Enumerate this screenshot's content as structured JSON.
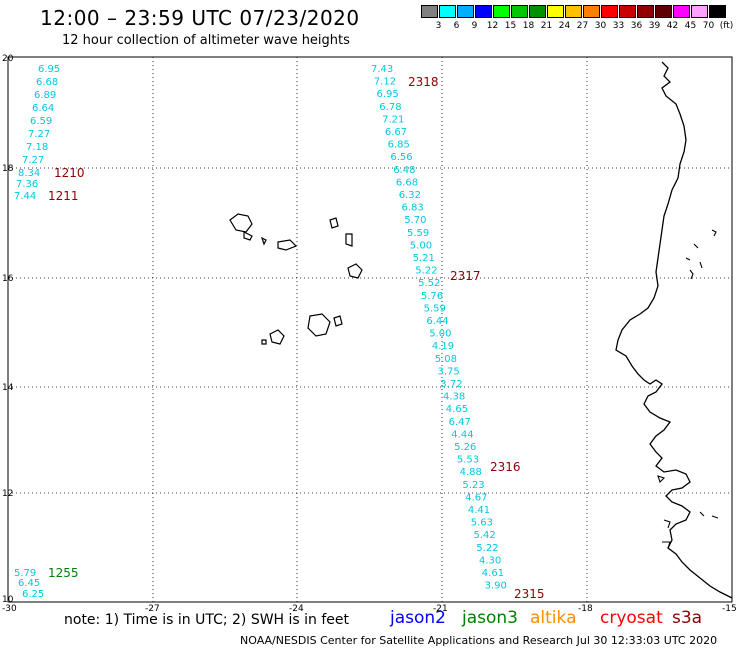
{
  "header": {
    "title": "12:00 – 23:59 UTC 07/23/2020",
    "subtitle": "12 hour collection of altimeter wave heights"
  },
  "legend": {
    "labels": [
      "3",
      "6",
      "9",
      "12",
      "15",
      "18",
      "21",
      "24",
      "27",
      "30",
      "33",
      "36",
      "39",
      "42",
      "45",
      "70",
      "(ft)"
    ],
    "colors": [
      "#808080",
      "#00ffff",
      "#00b0ff",
      "#0000ff",
      "#00ff00",
      "#00c800",
      "#009000",
      "#ffff00",
      "#ffc000",
      "#ff8000",
      "#ff0000",
      "#c80000",
      "#900000",
      "#600000",
      "#ff00ff",
      "#ffa0ff",
      "#000000"
    ]
  },
  "axes": {
    "x_ticks": [
      "-30",
      "-27",
      "-24",
      "-21",
      "-18",
      "-15"
    ],
    "y_ticks": [
      "20",
      "18",
      "16",
      "14",
      "12",
      "10"
    ]
  },
  "tracks": {
    "group_a": {
      "values": [
        "6.95",
        "6.68",
        "6.89",
        "6.64",
        "6.59",
        "7.27",
        "7.18",
        "7.27",
        "8.34",
        "7.36",
        "7.44"
      ],
      "times": [
        "1210",
        "1211"
      ]
    },
    "group_b": {
      "values": [
        "7.43",
        "7.12",
        "6.95",
        "6.78",
        "7.21",
        "6.67",
        "6.85",
        "6.56",
        "6.48",
        "6.68",
        "6.32",
        "6.83",
        "5.70",
        "5.59",
        "5.00",
        "5.21",
        "5.22",
        "5.52",
        "5.76",
        "5.59",
        "6.44",
        "5.00",
        "4.19",
        "5.08",
        "3.75",
        "3.72",
        "4.38",
        "4.65",
        "6.47",
        "4.44",
        "5.26",
        "5.53",
        "4.88",
        "5.23",
        "4.67",
        "4.41",
        "5.63",
        "5.42",
        "5.22",
        "4.30",
        "4.61",
        "3.90"
      ],
      "times": [
        "2318",
        "2317",
        "2316",
        "2315"
      ]
    },
    "group_c": {
      "values": [
        "5.79",
        "6.45",
        "6.25"
      ],
      "times": [
        "1255"
      ]
    }
  },
  "colors": {
    "value_text": "#00c8e0",
    "time_text_dark": "#8b0000",
    "time_text_green": "#008000"
  },
  "notes": {
    "note": "note: 1) Time is in UTC; 2) SWH is in feet",
    "satellites": [
      {
        "name": "jason2",
        "color": "#0000ff"
      },
      {
        "name": "jason3",
        "color": "#008000"
      },
      {
        "name": "altika",
        "color": "#ff8c00"
      },
      {
        "name": "cryosat",
        "color": "#ff0000"
      },
      {
        "name": "s3a",
        "color": "#8b0000"
      }
    ]
  },
  "footer": "NOAA/NESDIS Center for Satellite Applications and Research   Jul 30 12:33:03 UTC 2020"
}
